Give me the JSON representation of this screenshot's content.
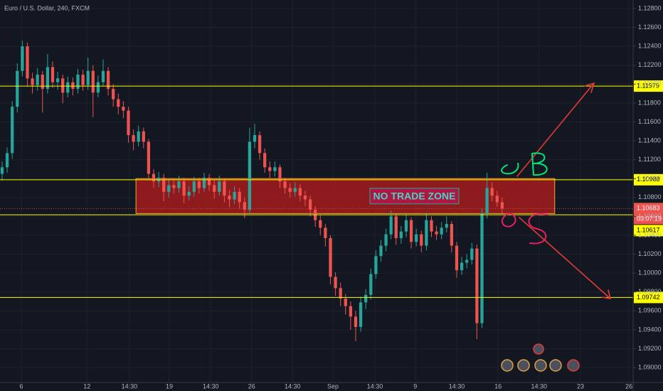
{
  "chart_data": {
    "type": "candlestick",
    "title": "Euro / U.S. Dollar, 240, FXCM",
    "up_color": "#26a69a",
    "down_color": "#ef5350",
    "grid": true,
    "xlim": [
      -0.42,
      124.93
    ],
    "ylim": [
      1.0885,
      1.1289
    ],
    "yticks": [
      {
        "value": 1.09,
        "label": "1.09000"
      },
      {
        "value": 1.092,
        "label": "1.09200"
      },
      {
        "value": 1.094,
        "label": "1.09400"
      },
      {
        "value": 1.096,
        "label": "1.09600"
      },
      {
        "value": 1.098,
        "label": "1.09800"
      },
      {
        "value": 1.1,
        "label": "1.10000"
      },
      {
        "value": 1.102,
        "label": "1.10200"
      },
      {
        "value": 1.104,
        "label": "1.10400"
      },
      {
        "value": 1.106,
        "label": "1.10600"
      },
      {
        "value": 1.108,
        "label": "1.10800"
      },
      {
        "value": 1.11,
        "label": "1.11000"
      },
      {
        "value": 1.112,
        "label": "1.11200"
      },
      {
        "value": 1.114,
        "label": "1.11400"
      },
      {
        "value": 1.116,
        "label": "1.11600"
      },
      {
        "value": 1.118,
        "label": "1.11800"
      },
      {
        "value": 1.12,
        "label": "1.12000"
      },
      {
        "value": 1.122,
        "label": "1.12200"
      },
      {
        "value": 1.124,
        "label": "1.12400"
      },
      {
        "value": 1.126,
        "label": "1.12600"
      },
      {
        "value": 1.128,
        "label": "1.12800"
      }
    ],
    "xticks": [
      {
        "value": 3.8,
        "label": "6"
      },
      {
        "value": 16.8,
        "label": "12"
      },
      {
        "value": 25.2,
        "label": "14:30"
      },
      {
        "value": 33.1,
        "label": "19"
      },
      {
        "value": 41.3,
        "label": "14:30"
      },
      {
        "value": 49.4,
        "label": "26"
      },
      {
        "value": 57.5,
        "label": "14:30"
      },
      {
        "value": 65.5,
        "label": "Sep"
      },
      {
        "value": 73.8,
        "label": "14:30"
      },
      {
        "value": 81.8,
        "label": "9"
      },
      {
        "value": 90.0,
        "label": "14:30"
      },
      {
        "value": 98.2,
        "label": "16"
      },
      {
        "value": 106.3,
        "label": "14:30"
      },
      {
        "value": 114.5,
        "label": "23"
      },
      {
        "value": 124.1,
        "label": "26"
      }
    ],
    "open": [
      1.1105,
      1.1112,
      1.1127,
      1.1176,
      1.1214,
      1.124,
      1.1206,
      1.1199,
      1.121,
      1.1195,
      1.1218,
      1.1202,
      1.1206,
      1.1191,
      1.1202,
      1.1195,
      1.121,
      1.1199,
      1.1214,
      1.1191,
      1.1202,
      1.1214,
      1.1195,
      1.1184,
      1.1176,
      1.1172,
      1.1146,
      1.1139,
      1.115,
      1.1139,
      1.1105,
      1.1097,
      1.1101,
      1.1086,
      1.1093,
      1.109,
      1.1097,
      1.1082,
      1.1086,
      1.1097,
      1.109,
      1.1101,
      1.1093,
      1.1086,
      1.1097,
      1.1082,
      1.1078,
      1.1086,
      1.1075,
      1.1067,
      1.1139,
      1.1146,
      1.1127,
      1.1112,
      1.1108,
      1.1112,
      1.1097,
      1.109,
      1.1086,
      1.109,
      1.1082,
      1.1078,
      1.1067,
      1.1056,
      1.1048,
      1.1037,
      1.0996,
      1.0984,
      1.0973,
      1.0965,
      1.0954,
      1.0943,
      1.0969,
      1.0977,
      1.0999,
      1.1018,
      1.1029,
      1.1041,
      1.106,
      1.1037,
      1.1044,
      1.1056,
      1.1033,
      1.1041,
      1.1029,
      1.1056,
      1.1044,
      1.1041,
      1.1048,
      1.1052,
      1.1029,
      1.1003,
      1.1011,
      1.1014,
      1.1026,
      1.0947,
      1.1063,
      1.109,
      1.1082,
      1.1075
    ],
    "high": [
      1.1118,
      1.1133,
      1.1182,
      1.1222,
      1.1246,
      1.1244,
      1.1212,
      1.1217,
      1.1214,
      1.1232,
      1.1224,
      1.1213,
      1.121,
      1.1208,
      1.1207,
      1.1216,
      1.1215,
      1.1228,
      1.122,
      1.1209,
      1.1226,
      1.1218,
      1.12,
      1.119,
      1.1182,
      1.1176,
      1.1152,
      1.1156,
      1.1154,
      1.1142,
      1.111,
      1.1107,
      1.1105,
      1.1099,
      1.1098,
      1.1103,
      1.1101,
      1.1092,
      1.1102,
      1.1101,
      1.1106,
      1.1105,
      1.1098,
      1.1103,
      1.11,
      1.1088,
      1.1092,
      1.109,
      1.108,
      1.1154,
      1.1158,
      1.115,
      1.1132,
      1.1118,
      1.1118,
      1.1115,
      1.1101,
      1.1095,
      1.1096,
      1.1094,
      1.1087,
      1.1082,
      1.1071,
      1.1061,
      1.1052,
      1.104,
      1.1001,
      1.099,
      1.0978,
      1.097,
      1.096,
      1.0975,
      1.0983,
      1.1005,
      1.1024,
      1.1035,
      1.1047,
      1.1066,
      1.1063,
      1.105,
      1.1062,
      1.1059,
      1.1047,
      1.1045,
      1.1064,
      1.106,
      1.105,
      1.1054,
      1.106,
      1.1055,
      1.1033,
      1.1017,
      1.102,
      1.1032,
      1.103,
      1.1068,
      1.1106,
      1.1096,
      1.1087,
      1.108
    ],
    "low": [
      1.1098,
      1.1106,
      1.1121,
      1.117,
      1.1208,
      1.1198,
      1.119,
      1.1193,
      1.117,
      1.119,
      1.1196,
      1.1194,
      1.118,
      1.1186,
      1.1188,
      1.119,
      1.1193,
      1.1194,
      1.1165,
      1.1186,
      1.1198,
      1.1188,
      1.1176,
      1.1168,
      1.1164,
      1.1138,
      1.113,
      1.1134,
      1.1132,
      1.1098,
      1.109,
      1.1091,
      1.1076,
      1.108,
      1.1084,
      1.1085,
      1.1074,
      1.1077,
      1.1081,
      1.1084,
      1.1086,
      1.1087,
      1.1079,
      1.1082,
      1.1075,
      1.107,
      1.1073,
      1.1068,
      1.1058,
      1.1063,
      1.1132,
      1.112,
      1.1106,
      1.1101,
      1.1102,
      1.109,
      1.1084,
      1.108,
      1.1081,
      1.1076,
      1.1071,
      1.106,
      1.1049,
      1.104,
      1.1028,
      1.0988,
      1.0976,
      1.0965,
      1.0956,
      1.094,
      1.0928,
      1.0938,
      1.0962,
      1.0972,
      1.0994,
      1.1012,
      1.1023,
      1.1036,
      1.103,
      1.1031,
      1.1038,
      1.1026,
      1.1028,
      1.1022,
      1.1024,
      1.1038,
      1.1035,
      1.1036,
      1.1043,
      1.1022,
      1.0995,
      1.0998,
      1.1005,
      1.1009,
      1.093,
      1.0942,
      1.1058,
      1.1076,
      1.107,
      1.1063
    ],
    "close": [
      1.1112,
      1.1127,
      1.1176,
      1.1214,
      1.124,
      1.1206,
      1.1199,
      1.121,
      1.1195,
      1.1218,
      1.1202,
      1.1206,
      1.1191,
      1.1202,
      1.1195,
      1.121,
      1.1199,
      1.1214,
      1.1191,
      1.1202,
      1.1214,
      1.1195,
      1.1184,
      1.1176,
      1.1172,
      1.1146,
      1.1139,
      1.115,
      1.1139,
      1.1105,
      1.1097,
      1.1101,
      1.1086,
      1.1093,
      1.109,
      1.1097,
      1.1082,
      1.1086,
      1.1097,
      1.109,
      1.1101,
      1.1093,
      1.1086,
      1.1097,
      1.1082,
      1.1078,
      1.1086,
      1.1075,
      1.1067,
      1.1139,
      1.1146,
      1.1127,
      1.1112,
      1.1108,
      1.1112,
      1.1097,
      1.109,
      1.1086,
      1.109,
      1.1082,
      1.1078,
      1.1067,
      1.1056,
      1.1048,
      1.1037,
      1.0996,
      1.0984,
      1.0973,
      1.0965,
      1.0954,
      1.0943,
      1.0969,
      1.0977,
      1.0999,
      1.1018,
      1.1029,
      1.1041,
      1.106,
      1.1037,
      1.1044,
      1.1056,
      1.1033,
      1.1041,
      1.1029,
      1.1056,
      1.1044,
      1.1041,
      1.1048,
      1.1052,
      1.1029,
      1.1003,
      1.1011,
      1.1014,
      1.1026,
      1.0947,
      1.1063,
      1.109,
      1.1082,
      1.1075,
      1.10683
    ],
    "levels": [
      {
        "value": 1.11979,
        "label": "1.11979"
      },
      {
        "value": 1.10988,
        "label": "1.10988"
      },
      {
        "value": 1.10617,
        "label": "1.10617"
      },
      {
        "value": 1.09742,
        "label": "1.09742"
      }
    ],
    "level_color": "#ffff00",
    "last_price": {
      "value": 1.10683,
      "label": "1.10683"
    },
    "countdown": "03:07:19",
    "zone": {
      "label": "NO TRADE ZONE",
      "x": [
        26.5,
        109.4
      ],
      "y": [
        1.11,
        1.1063
      ],
      "color": "#b71c1c"
    }
  }
}
